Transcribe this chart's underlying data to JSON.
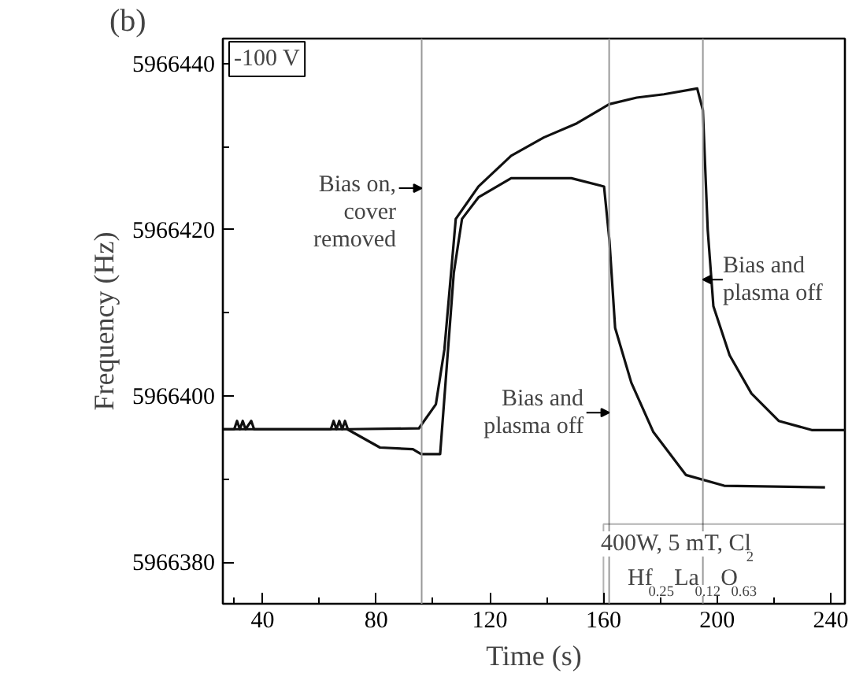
{
  "chart_data": {
    "type": "line",
    "xlabel": "Time (s)",
    "ylabel": "Frequency (Hz)",
    "xlim": [
      26,
      245
    ],
    "ylim": [
      5966375,
      5966443
    ],
    "xticks": [
      {
        "value": 30,
        "label": null
      },
      40,
      {
        "value": 60,
        "label": null
      },
      80,
      {
        "value": 100,
        "label": null
      },
      120,
      {
        "value": 140,
        "label": null
      },
      160,
      {
        "value": 180,
        "label": null
      },
      200,
      {
        "value": 220,
        "label": null
      },
      240
    ],
    "yticks": [
      5966380,
      {
        "value": 5966390,
        "label": null
      },
      5966400,
      {
        "value": 5966410,
        "label": null
      },
      5966420,
      {
        "value": 5966430,
        "label": null
      },
      5966440
    ],
    "grid": false,
    "line_style": "solid",
    "series": [
      {
        "color": "#111111",
        "x": [
          26,
          30,
          31,
          32,
          33,
          34,
          36,
          37,
          38,
          64,
          65,
          66,
          67,
          68,
          69,
          70,
          95,
          101,
          104,
          108,
          116,
          127.5,
          139,
          150.6,
          162,
          171.7,
          181.3,
          193,
          195,
          196.7,
          198.7,
          204.4,
          212.1,
          221.7,
          233.3,
          245
        ],
        "values": [
          5966396,
          5966396,
          5966397,
          5966396,
          5966397,
          5966396,
          5966397,
          5966396,
          5966396,
          5966396,
          5966397,
          5966396,
          5966397,
          5966396,
          5966397,
          5966396,
          5966396.1,
          5966399,
          5966405.6,
          5966421.3,
          5966425.2,
          5966428.9,
          5966431.1,
          5966432.8,
          5966435.1,
          5966435.9,
          5966436.3,
          5966437,
          5966434.4,
          5966420,
          5966410.8,
          5966404.9,
          5966400.3,
          5966397,
          5966395.9,
          5966395.9
        ]
      },
      {
        "color": "#111111",
        "x": [
          26,
          69.8,
          81.3,
          92.9,
          95.8,
          102.5,
          104.4,
          107.3,
          110.2,
          116,
          127.5,
          148.7,
          160.2,
          162.1,
          164.1,
          169.8,
          177.5,
          189,
          202.5,
          238
        ],
        "values": [
          5966396,
          5966396,
          5966393.8,
          5966393.6,
          5966393,
          5966393,
          5966401.6,
          5966414.8,
          5966421.3,
          5966423.9,
          5966426.2,
          5966426.2,
          5966425.2,
          5966418.7,
          5966408.2,
          5966401.6,
          5966395.7,
          5966390.5,
          5966389.2,
          5966389
        ]
      }
    ],
    "ref_lines": [
      {
        "axis": "x",
        "value": 96,
        "color": "#999999"
      },
      {
        "axis": "x",
        "value": 162,
        "color": "#999999"
      },
      {
        "axis": "x",
        "value": 195,
        "color": "#999999"
      }
    ],
    "annotations": [
      "(b)",
      "-100 V",
      {
        "text": "Bias on,\ncover\nremoved",
        "x": 96,
        "y": 5966425
      },
      {
        "text": "Bias and\nplasma off",
        "x": 162,
        "y": 5966398
      },
      {
        "text": "Bias and\nplasma off",
        "x": 195,
        "y": 5966414
      },
      "400W, 5 mT, Cl$_{2}$",
      "Hf$_{0.25}$La$_{0.12}$O$_{0.63}$"
    ]
  }
}
